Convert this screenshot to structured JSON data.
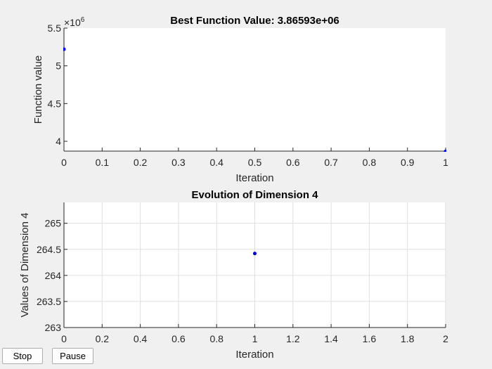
{
  "buttons": {
    "stop_label": "Stop",
    "pause_label": "Pause"
  },
  "chart_data": [
    {
      "type": "scatter",
      "title": "Best Function Value: 3.86593e+06",
      "xlabel": "Iteration",
      "ylabel": "Function value",
      "exponent_base": "×10",
      "exponent_power": "6",
      "xlim": [
        0,
        1
      ],
      "ylim": [
        3.87,
        5.5
      ],
      "xticks": [
        0,
        0.1,
        0.2,
        0.3,
        0.4,
        0.5,
        0.6,
        0.7,
        0.8,
        0.9,
        1
      ],
      "xtick_labels": [
        "0",
        "0.1",
        "0.2",
        "0.3",
        "0.4",
        "0.5",
        "0.6",
        "0.7",
        "0.8",
        "0.9",
        "1"
      ],
      "yticks": [
        4,
        4.5,
        5,
        5.5
      ],
      "ytick_labels": [
        "4",
        "4.5",
        "5",
        "5.5"
      ],
      "grid": false,
      "marker_color": "#0000ff",
      "series": [
        {
          "x": [
            0,
            1
          ],
          "y": [
            5.22,
            3.86593
          ]
        }
      ]
    },
    {
      "type": "scatter",
      "title": "Evolution of Dimension 4",
      "xlabel": "Iteration",
      "ylabel": "Values of Dimension 4",
      "xlim": [
        0,
        2
      ],
      "ylim": [
        263,
        265.4
      ],
      "xticks": [
        0,
        0.2,
        0.4,
        0.6,
        0.8,
        1,
        1.2,
        1.4,
        1.6,
        1.8,
        2
      ],
      "xtick_labels": [
        "0",
        "0.2",
        "0.4",
        "0.6",
        "0.8",
        "1",
        "1.2",
        "1.4",
        "1.6",
        "1.8",
        "2"
      ],
      "yticks": [
        263,
        263.5,
        264,
        264.5,
        265
      ],
      "ytick_labels": [
        "263",
        "263.5",
        "264",
        "264.5",
        "265"
      ],
      "grid": true,
      "marker_color": "#0000cd",
      "series": [
        {
          "x": [
            1
          ],
          "y": [
            264.42
          ]
        }
      ]
    }
  ]
}
